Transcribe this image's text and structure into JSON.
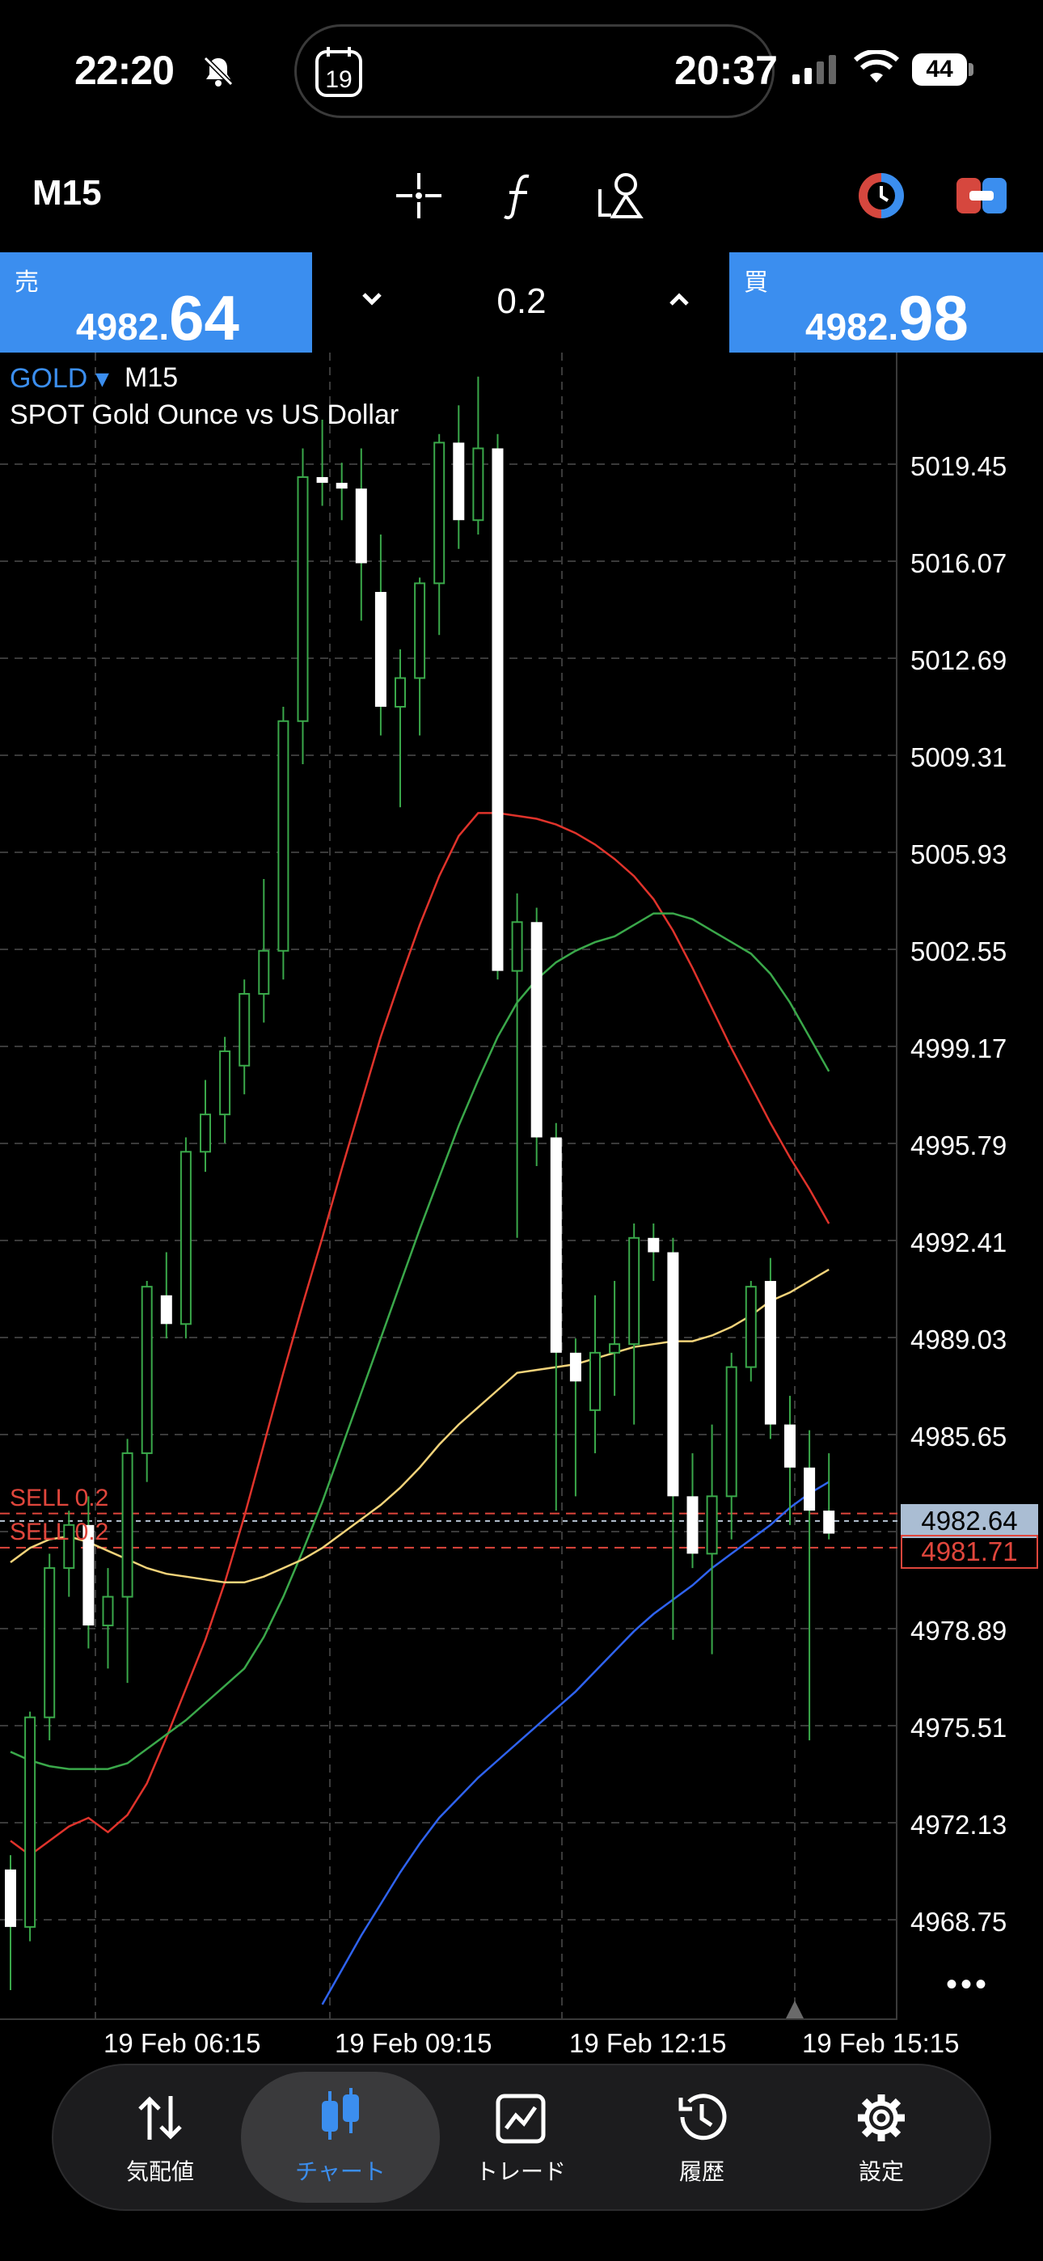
{
  "status_bar": {
    "time": "22:20",
    "island_time": "20:37",
    "calendar_day": "19",
    "battery": "44"
  },
  "toolbar": {
    "timeframe": "M15",
    "icons": [
      "crosshair-icon",
      "function-icon",
      "objects-icon",
      "one-click-trading-icon",
      "account-icon"
    ]
  },
  "trade": {
    "sell_label": "売",
    "sell_price_small": "4982.",
    "sell_price_big": "64",
    "buy_label": "買",
    "buy_price_small": "4982.",
    "buy_price_big": "98",
    "volume": "0.2"
  },
  "chart_header": {
    "symbol": "GOLD",
    "arrow": "▾",
    "timeframe": "M15",
    "description": "SPOT Gold Ounce vs US Dollar"
  },
  "price_axis": [
    "5019.45",
    "5016.07",
    "5012.69",
    "5009.31",
    "5005.93",
    "5002.55",
    "4999.17",
    "4995.79",
    "4992.41",
    "4989.03",
    "4985.65",
    "4978.89",
    "4975.51",
    "4972.13",
    "4968.75"
  ],
  "time_axis": [
    "19 Feb 06:15",
    "19 Feb 09:15",
    "19 Feb 12:15",
    "19 Feb 15:15"
  ],
  "current_bid": "4982.64",
  "order_price": "4981.71",
  "order_lines": [
    "SELL 0.2",
    "SELL 0.2"
  ],
  "more": "•••",
  "nav": [
    {
      "label": "気配値",
      "icon": "quotes-icon"
    },
    {
      "label": "チャート",
      "icon": "chart-candles-icon"
    },
    {
      "label": "トレード",
      "icon": "trade-icon"
    },
    {
      "label": "履歴",
      "icon": "history-icon"
    },
    {
      "label": "設定",
      "icon": "settings-icon"
    }
  ],
  "colors": {
    "accent": "#3b8eef",
    "sell_line": "#e0463c",
    "ma_red": "#e0332b",
    "ma_green": "#3aa84a",
    "ma_yellow": "#f2d37a",
    "ma_blue": "#2f63f0",
    "bull_wick": "#3aa84a"
  },
  "chart_data": {
    "type": "candlestick",
    "symbol": "GOLD",
    "timeframe": "M15",
    "y_range": [
      4966.0,
      5024.0
    ],
    "candles": [
      {
        "o": 4970.5,
        "h": 4971.0,
        "l": 4966.3,
        "c": 4968.5
      },
      {
        "o": 4968.5,
        "h": 4976.0,
        "l": 4968.0,
        "c": 4975.8
      },
      {
        "o": 4975.8,
        "h": 4981.5,
        "l": 4975.0,
        "c": 4981.0
      },
      {
        "o": 4981.0,
        "h": 4983.0,
        "l": 4980.0,
        "c": 4982.5
      },
      {
        "o": 4982.5,
        "h": 4983.5,
        "l": 4978.2,
        "c": 4979.0
      },
      {
        "o": 4979.0,
        "h": 4981.0,
        "l": 4977.5,
        "c": 4980.0
      },
      {
        "o": 4980.0,
        "h": 4985.5,
        "l": 4977.0,
        "c": 4985.0
      },
      {
        "o": 4985.0,
        "h": 4991.0,
        "l": 4984.0,
        "c": 4990.8
      },
      {
        "o": 4990.5,
        "h": 4992.0,
        "l": 4989.0,
        "c": 4989.5
      },
      {
        "o": 4989.5,
        "h": 4996.0,
        "l": 4989.0,
        "c": 4995.5
      },
      {
        "o": 4995.5,
        "h": 4998.0,
        "l": 4994.8,
        "c": 4996.8
      },
      {
        "o": 4996.8,
        "h": 4999.5,
        "l": 4995.8,
        "c": 4999.0
      },
      {
        "o": 4998.5,
        "h": 5001.5,
        "l": 4997.5,
        "c": 5001.0
      },
      {
        "o": 5001.0,
        "h": 5005.0,
        "l": 5000.0,
        "c": 5002.5
      },
      {
        "o": 5002.5,
        "h": 5011.0,
        "l": 5001.5,
        "c": 5010.5
      },
      {
        "o": 5010.5,
        "h": 5020.0,
        "l": 5009.0,
        "c": 5019.0
      },
      {
        "o": 5019.0,
        "h": 5021.0,
        "l": 5018.0,
        "c": 5018.8
      },
      {
        "o": 5018.8,
        "h": 5019.5,
        "l": 5017.5,
        "c": 5018.6
      },
      {
        "o": 5018.6,
        "h": 5020.0,
        "l": 5014.0,
        "c": 5016.0
      },
      {
        "o": 5015.0,
        "h": 5017.0,
        "l": 5010.0,
        "c": 5011.0
      },
      {
        "o": 5011.0,
        "h": 5013.0,
        "l": 5007.5,
        "c": 5012.0
      },
      {
        "o": 5012.0,
        "h": 5015.5,
        "l": 5010.0,
        "c": 5015.3
      },
      {
        "o": 5015.3,
        "h": 5020.5,
        "l": 5013.5,
        "c": 5020.2
      },
      {
        "o": 5020.2,
        "h": 5021.5,
        "l": 5016.5,
        "c": 5017.5
      },
      {
        "o": 5017.5,
        "h": 5022.5,
        "l": 5017.0,
        "c": 5020.0
      },
      {
        "o": 5020.0,
        "h": 5020.5,
        "l": 5001.5,
        "c": 5001.8
      },
      {
        "o": 5001.8,
        "h": 5004.5,
        "l": 4992.5,
        "c": 5003.5
      },
      {
        "o": 5003.5,
        "h": 5004.0,
        "l": 4995.0,
        "c": 4996.0
      },
      {
        "o": 4996.0,
        "h": 4996.5,
        "l": 4983.0,
        "c": 4988.5
      },
      {
        "o": 4988.5,
        "h": 4989.0,
        "l": 4983.5,
        "c": 4987.5
      },
      {
        "o": 4986.5,
        "h": 4990.5,
        "l": 4985.0,
        "c": 4988.5
      },
      {
        "o": 4988.5,
        "h": 4991.0,
        "l": 4987.0,
        "c": 4988.8
      },
      {
        "o": 4988.8,
        "h": 4993.0,
        "l": 4986.0,
        "c": 4992.5
      },
      {
        "o": 4992.5,
        "h": 4993.0,
        "l": 4991.0,
        "c": 4992.0
      },
      {
        "o": 4992.0,
        "h": 4992.5,
        "l": 4978.5,
        "c": 4983.5
      },
      {
        "o": 4983.5,
        "h": 4985.0,
        "l": 4981.0,
        "c": 4981.5
      },
      {
        "o": 4981.5,
        "h": 4986.0,
        "l": 4978.0,
        "c": 4983.5
      },
      {
        "o": 4983.5,
        "h": 4988.5,
        "l": 4982.0,
        "c": 4988.0
      },
      {
        "o": 4988.0,
        "h": 4991.0,
        "l": 4987.5,
        "c": 4990.8
      },
      {
        "o": 4991.0,
        "h": 4991.8,
        "l": 4985.5,
        "c": 4986.0
      },
      {
        "o": 4986.0,
        "h": 4987.0,
        "l": 4982.5,
        "c": 4984.5
      },
      {
        "o": 4984.5,
        "h": 4985.8,
        "l": 4975.0,
        "c": 4983.0
      },
      {
        "o": 4983.0,
        "h": 4985.0,
        "l": 4982.0,
        "c": 4982.2
      }
    ],
    "moving_averages": [
      {
        "color": "red",
        "values": [
          4971.5,
          4971.0,
          4971.5,
          4972.0,
          4972.3,
          4971.8,
          4972.4,
          4973.5,
          4975.1,
          4976.8,
          4978.5,
          4980.5,
          4982.8,
          4985.3,
          4987.8,
          4990.2,
          4992.5,
          4994.9,
          4997.2,
          4999.5,
          5001.5,
          5003.4,
          5005.1,
          5006.5,
          5007.3,
          5007.3,
          5007.2,
          5007.1,
          5006.9,
          5006.6,
          5006.2,
          5005.7,
          5005.1,
          5004.3,
          5003.2,
          5001.9,
          5000.5,
          4999.1,
          4997.8,
          4996.5,
          4995.3,
          4994.2,
          4993.0
        ]
      },
      {
        "color": "green",
        "values": [
          4974.6,
          4974.3,
          4974.1,
          4974.0,
          4974.0,
          4974.0,
          4974.2,
          4974.7,
          4975.2,
          4975.7,
          4976.3,
          4976.9,
          4977.5,
          4978.6,
          4980.0,
          4981.6,
          4983.3,
          4985.2,
          4987.1,
          4989.0,
          4990.9,
          4992.8,
          4994.6,
          4996.4,
          4998.0,
          4999.5,
          5000.7,
          5001.5,
          5002.1,
          5002.5,
          5002.8,
          5003.0,
          5003.4,
          5003.8,
          5003.8,
          5003.6,
          5003.2,
          5002.8,
          5002.4,
          5001.7,
          5000.7,
          4999.5,
          4998.3
        ]
      },
      {
        "color": "yellow",
        "values": [
          4981.2,
          4981.7,
          4982.0,
          4982.1,
          4981.9,
          4981.6,
          4981.3,
          4981.0,
          4980.8,
          4980.7,
          4980.6,
          4980.5,
          4980.5,
          4980.7,
          4981.0,
          4981.3,
          4981.7,
          4982.2,
          4982.7,
          4983.2,
          4983.8,
          4984.5,
          4985.3,
          4986.0,
          4986.6,
          4987.2,
          4987.8,
          4987.9,
          4988.0,
          4988.1,
          4988.3,
          4988.5,
          4988.7,
          4988.8,
          4988.9,
          4988.9,
          4989.1,
          4989.4,
          4989.8,
          4990.3,
          4990.6,
          4991.0,
          4991.4
        ]
      },
      {
        "color": "blue",
        "values": [
          null,
          null,
          null,
          null,
          null,
          null,
          null,
          null,
          null,
          null,
          null,
          null,
          null,
          null,
          null,
          null,
          4965.8,
          4967.0,
          4968.2,
          4969.3,
          4970.4,
          4971.4,
          4972.3,
          4973.0,
          4973.7,
          4974.3,
          4974.9,
          4975.5,
          4976.1,
          4976.7,
          4977.4,
          4978.1,
          4978.8,
          4979.4,
          4979.9,
          4980.4,
          4981.0,
          4981.5,
          4982.0,
          4982.5,
          4983.1,
          4983.6,
          4984.0
        ]
      }
    ],
    "horizontal_lines": [
      {
        "label": "SELL 0.2",
        "price": 4982.9
      },
      {
        "label": "SELL 0.2",
        "price": 4981.71
      },
      {
        "label": "bid",
        "price": 4982.64
      }
    ]
  }
}
